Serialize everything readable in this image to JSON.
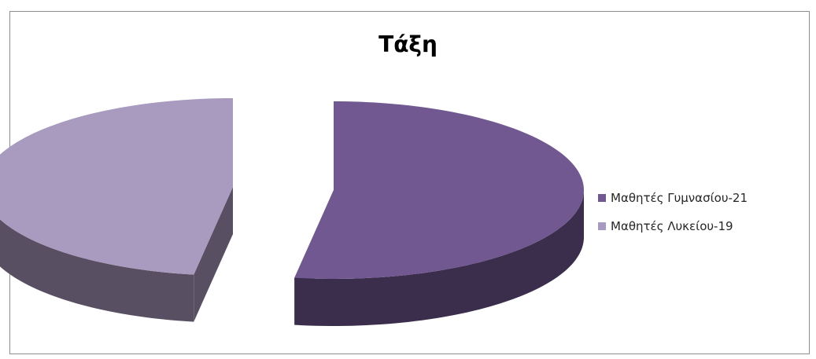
{
  "chart_data": {
    "type": "pie",
    "title": "Τάξη",
    "categories": [
      "Μαθητές Γυμνασίου-21",
      "Μαθητές Λυκείου-19"
    ],
    "values": [
      21,
      19
    ],
    "colors": [
      "#725891",
      "#a89bbf"
    ],
    "side_colors": [
      "#3b2e4d",
      "#585062"
    ],
    "style": "3d-exploded",
    "legend_position": "right"
  }
}
